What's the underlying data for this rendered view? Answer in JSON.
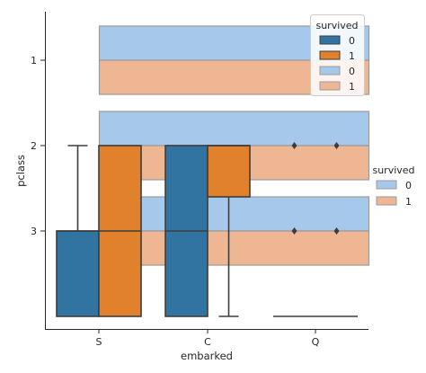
{
  "chart_data": {
    "type": "box",
    "xlabel": "embarked",
    "ylabel": "pclass",
    "x_categories": [
      "S",
      "C",
      "Q"
    ],
    "y_ticks": [
      1,
      2,
      3
    ],
    "y_axis_inverted": true,
    "ylim": [
      0.5,
      4.1
    ],
    "vertical_boxes": {
      "hue": "survived",
      "series": [
        {
          "name": "0",
          "color": "#3274a1",
          "boxes": [
            {
              "category": "S",
              "q1": 3,
              "median": 3,
              "q3": 4,
              "whisker_low": 2,
              "whisker_high": 4,
              "fliers": []
            },
            {
              "category": "C",
              "q1": 2,
              "median": 3,
              "q3": 4,
              "whisker_low": 2,
              "whisker_high": 4,
              "fliers": []
            },
            {
              "category": "Q",
              "q1": 4,
              "median": 4,
              "q3": 4,
              "whisker_low": 4,
              "whisker_high": 4,
              "fliers": [
                2,
                3
              ]
            }
          ]
        },
        {
          "name": "1",
          "color": "#e1812c",
          "boxes": [
            {
              "category": "S",
              "q1": 2,
              "median": 3,
              "q3": 4,
              "whisker_low": 2,
              "whisker_high": 4,
              "fliers": []
            },
            {
              "category": "C",
              "q1": 2,
              "median": 2,
              "q3": 2.6,
              "whisker_low": 2,
              "whisker_high": 4,
              "fliers": []
            },
            {
              "category": "Q",
              "q1": 4,
              "median": 4,
              "q3": 4,
              "whisker_low": 4,
              "whisker_high": 4,
              "fliers": [
                2,
                3
              ]
            }
          ]
        }
      ]
    },
    "horizontal_boxes": {
      "hue": "survived",
      "series": [
        {
          "name": "0",
          "color": "#a6c8ea",
          "bands": [
            {
              "pclass": 1,
              "from": 0.6,
              "to": 1.0
            },
            {
              "pclass": 2,
              "from": 1.6,
              "to": 2.0
            },
            {
              "pclass": 3,
              "from": 2.6,
              "to": 3.0
            }
          ]
        },
        {
          "name": "1",
          "color": "#efb693",
          "bands": [
            {
              "pclass": 1,
              "from": 1.0,
              "to": 1.4
            },
            {
              "pclass": 2,
              "from": 2.0,
              "to": 2.4
            },
            {
              "pclass": 3,
              "from": 3.0,
              "to": 3.4
            }
          ]
        }
      ]
    },
    "legends": [
      {
        "placement": "top-right",
        "title": "survived",
        "entries": [
          {
            "label": "0",
            "color": "#3274a1"
          },
          {
            "label": "1",
            "color": "#e1812c"
          },
          {
            "label": "0",
            "color": "#a6c8ea"
          },
          {
            "label": "1",
            "color": "#efb693"
          }
        ]
      },
      {
        "placement": "right",
        "title": "survived",
        "entries": [
          {
            "label": "0",
            "color": "#a6c8ea"
          },
          {
            "label": "1",
            "color": "#efb693"
          }
        ]
      }
    ]
  }
}
